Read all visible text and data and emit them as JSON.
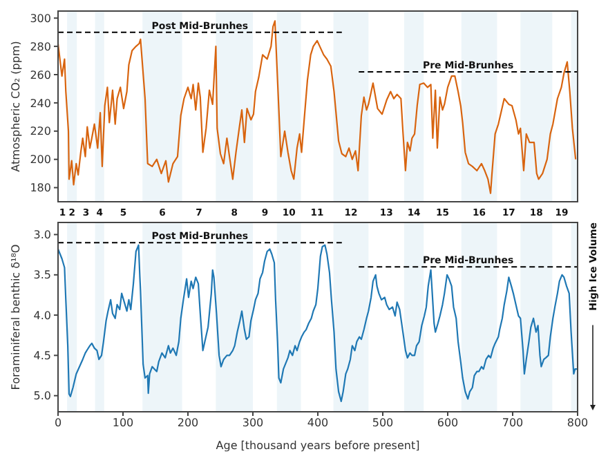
{
  "chart_data": [
    {
      "type": "line",
      "ylabel": "Atmospheric CO₂ (ppm)",
      "xlim": [
        0,
        800
      ],
      "xticks": [
        0,
        100,
        200,
        300,
        400,
        500,
        600,
        700,
        800
      ],
      "tick_labels": "y",
      "ylim": [
        170,
        305
      ],
      "yticks": [
        180,
        200,
        220,
        240,
        260,
        280,
        300
      ],
      "annotations": [
        "1",
        "3",
        "5",
        "7",
        "9",
        "11",
        "13",
        "15",
        "17",
        "19"
      ],
      "bands": [
        {
          "axis": "x",
          "from": 14,
          "to": 29,
          "color": "#edf5f9",
          "label": "2"
        },
        {
          "axis": "x",
          "from": 57,
          "to": 71,
          "color": "#edf5f9",
          "label": "4"
        },
        {
          "axis": "x",
          "from": 130,
          "to": 191,
          "color": "#edf5f9",
          "label": "6"
        },
        {
          "axis": "x",
          "from": 243,
          "to": 300,
          "color": "#edf5f9",
          "label": "8"
        },
        {
          "axis": "x",
          "from": 337,
          "to": 374,
          "color": "#edf5f9",
          "label": "10"
        },
        {
          "axis": "x",
          "from": 424,
          "to": 478,
          "color": "#edf5f9",
          "label": "12"
        },
        {
          "axis": "x",
          "from": 533,
          "to": 563,
          "color": "#edf5f9",
          "label": "14"
        },
        {
          "axis": "x",
          "from": 621,
          "to": 676,
          "color": "#edf5f9",
          "label": "16"
        },
        {
          "axis": "x",
          "from": 712,
          "to": 761,
          "color": "#edf5f9",
          "label": "18"
        },
        {
          "axis": "x",
          "from": 790,
          "to": 800,
          "color": "#edf5f9"
        }
      ],
      "series": [
        {
          "color": "#d8640f",
          "x": [
            0,
            6,
            10,
            12,
            16,
            17,
            21,
            24,
            28,
            31,
            35,
            38,
            42,
            45,
            49,
            52,
            56,
            61,
            65,
            68,
            72,
            76,
            79,
            84,
            88,
            91,
            96,
            101,
            106,
            109,
            114,
            120,
            125,
            127,
            134,
            138,
            145,
            152,
            159,
            166,
            170,
            177,
            184,
            189,
            194,
            200,
            205,
            208,
            212,
            216,
            219,
            223,
            228,
            233,
            238,
            243,
            245,
            250,
            255,
            260,
            264,
            269,
            274,
            279,
            283,
            287,
            291,
            297,
            301,
            304,
            309,
            315,
            322,
            328,
            331,
            334,
            336,
            340,
            343,
            349,
            354,
            359,
            363,
            368,
            372,
            375,
            379,
            384,
            389,
            393,
            399,
            404,
            409,
            414,
            420,
            425,
            432,
            437,
            443,
            448,
            453,
            458,
            462,
            467,
            471,
            475,
            478,
            485,
            492,
            499,
            506,
            512,
            517,
            522,
            528,
            531,
            535,
            538,
            542,
            545,
            549,
            553,
            557,
            563,
            569,
            574,
            577,
            581,
            584,
            588,
            592,
            595,
            600,
            606,
            611,
            616,
            620,
            623,
            627,
            632,
            638,
            645,
            652,
            657,
            662,
            666,
            668,
            673,
            678,
            682,
            687,
            694,
            699,
            705,
            709,
            712,
            717,
            721,
            726,
            733,
            737,
            740,
            746,
            753,
            758,
            762,
            769,
            775,
            779,
            784,
            788,
            792,
            797
          ],
          "values": [
            282,
            259,
            271,
            248,
            220,
            186,
            199,
            182,
            197,
            189,
            205,
            215,
            202,
            223,
            208,
            215,
            225,
            208,
            233,
            195,
            238,
            251,
            226,
            249,
            225,
            243,
            251,
            236,
            248,
            267,
            277,
            280,
            282,
            285,
            243,
            197,
            195,
            200,
            190,
            199,
            184,
            197,
            202,
            231,
            243,
            251,
            243,
            253,
            235,
            254,
            244,
            205,
            222,
            249,
            239,
            280,
            222,
            204,
            197,
            215,
            202,
            186,
            205,
            222,
            235,
            212,
            236,
            228,
            232,
            248,
            258,
            274,
            271,
            280,
            294,
            298,
            277,
            235,
            202,
            220,
            205,
            192,
            186,
            208,
            218,
            205,
            228,
            256,
            274,
            280,
            284,
            279,
            274,
            271,
            266,
            248,
            213,
            204,
            202,
            208,
            200,
            206,
            192,
            231,
            244,
            235,
            239,
            254,
            236,
            232,
            242,
            248,
            243,
            246,
            243,
            220,
            192,
            212,
            206,
            215,
            218,
            238,
            253,
            254,
            251,
            253,
            215,
            249,
            208,
            244,
            235,
            239,
            251,
            259,
            259,
            248,
            238,
            226,
            205,
            197,
            195,
            192,
            197,
            192,
            186,
            176,
            189,
            218,
            225,
            233,
            243,
            239,
            238,
            228,
            218,
            222,
            192,
            218,
            212,
            212,
            190,
            186,
            190,
            200,
            218,
            225,
            243,
            251,
            261,
            269,
            248,
            222,
            200
          ]
        },
        {
          "name": "Post Mid-Brunhes",
          "color": "#000000",
          "line_style": "dashed",
          "x": [
            0,
            437
          ],
          "values": [
            290,
            290
          ]
        },
        {
          "name": "Pre Mid-Brunhes",
          "color": "#000000",
          "line_style": "dashed",
          "x": [
            463,
            800
          ],
          "values": [
            262,
            262
          ]
        }
      ]
    },
    {
      "type": "line",
      "xlabel": "Age [thousand years before present]",
      "ylabel": "Foraminiferal benthic δ¹⁸O",
      "xlim": [
        0,
        800
      ],
      "xticks": [
        0,
        100,
        200,
        300,
        400,
        500,
        600,
        700,
        800
      ],
      "ylim": [
        5.2,
        2.85
      ],
      "yticks": [
        {
          "value": 3,
          "label": "3.0"
        },
        3.5,
        {
          "value": 4,
          "label": "4.0"
        },
        4.5,
        {
          "value": 5,
          "label": "5.0"
        }
      ],
      "annotations": [
        "High Ice Volume"
      ],
      "bands": [
        {
          "axis": "x",
          "from": 14,
          "to": 29,
          "color": "#edf5f9"
        },
        {
          "axis": "x",
          "from": 57,
          "to": 71,
          "color": "#edf5f9"
        },
        {
          "axis": "x",
          "from": 130,
          "to": 191,
          "color": "#edf5f9"
        },
        {
          "axis": "x",
          "from": 243,
          "to": 300,
          "color": "#edf5f9"
        },
        {
          "axis": "x",
          "from": 337,
          "to": 374,
          "color": "#edf5f9"
        },
        {
          "axis": "x",
          "from": 424,
          "to": 478,
          "color": "#edf5f9"
        },
        {
          "axis": "x",
          "from": 533,
          "to": 563,
          "color": "#edf5f9"
        },
        {
          "axis": "x",
          "from": 621,
          "to": 676,
          "color": "#edf5f9"
        },
        {
          "axis": "x",
          "from": 712,
          "to": 761,
          "color": "#edf5f9"
        },
        {
          "axis": "x",
          "from": 790,
          "to": 800,
          "color": "#edf5f9"
        }
      ],
      "series": [
        {
          "color": "#1f78b4",
          "x": [
            0,
            3,
            6,
            10,
            12,
            15,
            17,
            19,
            23,
            28,
            33,
            38,
            42,
            45,
            49,
            52,
            56,
            60,
            63,
            67,
            70,
            74,
            77,
            81,
            84,
            88,
            91,
            95,
            98,
            102,
            106,
            109,
            112,
            116,
            120,
            124,
            126,
            127,
            131,
            134,
            138,
            139,
            141,
            145,
            152,
            155,
            160,
            165,
            170,
            173,
            177,
            182,
            186,
            189,
            193,
            198,
            201,
            205,
            208,
            212,
            216,
            219,
            223,
            226,
            231,
            236,
            238,
            240,
            244,
            248,
            251,
            255,
            260,
            264,
            269,
            272,
            276,
            280,
            283,
            287,
            290,
            294,
            297,
            301,
            304,
            308,
            311,
            315,
            318,
            322,
            326,
            329,
            333,
            335,
            338,
            340,
            343,
            347,
            350,
            354,
            357,
            361,
            365,
            368,
            372,
            375,
            379,
            382,
            386,
            390,
            393,
            397,
            400,
            404,
            407,
            411,
            414,
            418,
            421,
            425,
            428,
            432,
            436,
            439,
            443,
            446,
            450,
            453,
            457,
            460,
            464,
            467,
            471,
            475,
            478,
            482,
            485,
            489,
            491,
            494,
            498,
            503,
            506,
            510,
            515,
            519,
            522,
            526,
            531,
            535,
            538,
            542,
            545,
            549,
            552,
            556,
            560,
            564,
            567,
            570,
            574,
            576,
            579,
            581,
            585,
            588,
            592,
            595,
            599,
            602,
            606,
            609,
            613,
            616,
            620,
            623,
            627,
            631,
            634,
            638,
            641,
            645,
            648,
            652,
            655,
            659,
            663,
            666,
            670,
            673,
            678,
            680,
            684,
            687,
            691,
            694,
            698,
            701,
            705,
            709,
            712,
            716,
            718,
            721,
            725,
            728,
            732,
            736,
            739,
            742,
            744,
            748,
            751,
            755,
            758,
            762,
            765,
            769,
            772,
            776,
            779,
            783,
            787,
            790,
            794,
            796,
            799
          ],
          "values": [
            3.18,
            3.24,
            3.3,
            3.41,
            3.81,
            4.38,
            4.98,
            5.01,
            4.9,
            4.73,
            4.64,
            4.55,
            4.47,
            4.43,
            4.38,
            4.35,
            4.41,
            4.44,
            4.55,
            4.5,
            4.33,
            4.07,
            3.95,
            3.81,
            3.98,
            4.04,
            3.87,
            3.93,
            3.73,
            3.84,
            3.95,
            3.81,
            3.93,
            3.61,
            3.21,
            3.13,
            3.53,
            3.7,
            4.61,
            4.78,
            4.75,
            4.97,
            4.73,
            4.64,
            4.7,
            4.58,
            4.47,
            4.53,
            4.38,
            4.47,
            4.41,
            4.5,
            4.33,
            4.04,
            3.81,
            3.55,
            3.78,
            3.58,
            3.67,
            3.53,
            3.61,
            3.98,
            4.44,
            4.33,
            4.15,
            3.73,
            3.44,
            3.53,
            3.98,
            4.5,
            4.64,
            4.55,
            4.5,
            4.5,
            4.44,
            4.38,
            4.21,
            4.07,
            3.95,
            4.18,
            4.3,
            4.27,
            4.07,
            3.93,
            3.81,
            3.73,
            3.55,
            3.47,
            3.33,
            3.21,
            3.18,
            3.24,
            3.35,
            3.81,
            4.33,
            4.78,
            4.84,
            4.67,
            4.61,
            4.53,
            4.44,
            4.5,
            4.38,
            4.44,
            4.33,
            4.27,
            4.21,
            4.18,
            4.1,
            4.04,
            3.95,
            3.87,
            3.67,
            3.27,
            3.15,
            3.13,
            3.24,
            3.47,
            3.81,
            4.21,
            4.67,
            4.95,
            5.07,
            4.95,
            4.73,
            4.67,
            4.55,
            4.38,
            4.44,
            4.33,
            4.27,
            4.3,
            4.18,
            4.04,
            3.95,
            3.78,
            3.58,
            3.5,
            3.64,
            3.73,
            3.81,
            3.78,
            3.87,
            3.93,
            3.9,
            4.01,
            3.84,
            3.93,
            4.21,
            4.44,
            4.53,
            4.47,
            4.5,
            4.5,
            4.38,
            4.33,
            4.13,
            4.01,
            3.9,
            3.64,
            3.44,
            3.7,
            4.1,
            4.21,
            4.1,
            4.01,
            3.87,
            3.73,
            3.5,
            3.55,
            3.64,
            3.9,
            4.04,
            4.33,
            4.58,
            4.78,
            4.95,
            5.04,
            4.95,
            4.9,
            4.75,
            4.7,
            4.7,
            4.64,
            4.67,
            4.55,
            4.5,
            4.53,
            4.41,
            4.35,
            4.27,
            4.18,
            4.04,
            3.87,
            3.7,
            3.53,
            3.64,
            3.73,
            3.87,
            4.01,
            4.04,
            4.44,
            4.73,
            4.55,
            4.33,
            4.15,
            4.04,
            4.21,
            4.13,
            4.5,
            4.64,
            4.55,
            4.53,
            4.5,
            4.27,
            4.04,
            3.9,
            3.73,
            3.58,
            3.5,
            3.53,
            3.64,
            3.73,
            4.21,
            4.73,
            4.67,
            4.67
          ]
        },
        {
          "name": "Post Mid-Brunhes",
          "color": "#000000",
          "line_style": "dashed",
          "x": [
            0,
            437
          ],
          "values": [
            3.1,
            3.1
          ]
        },
        {
          "name": "Pre Mid-Brunhes",
          "color": "#000000",
          "line_style": "dashed",
          "x": [
            463,
            800
          ],
          "values": [
            3.4,
            3.4
          ]
        }
      ]
    }
  ]
}
